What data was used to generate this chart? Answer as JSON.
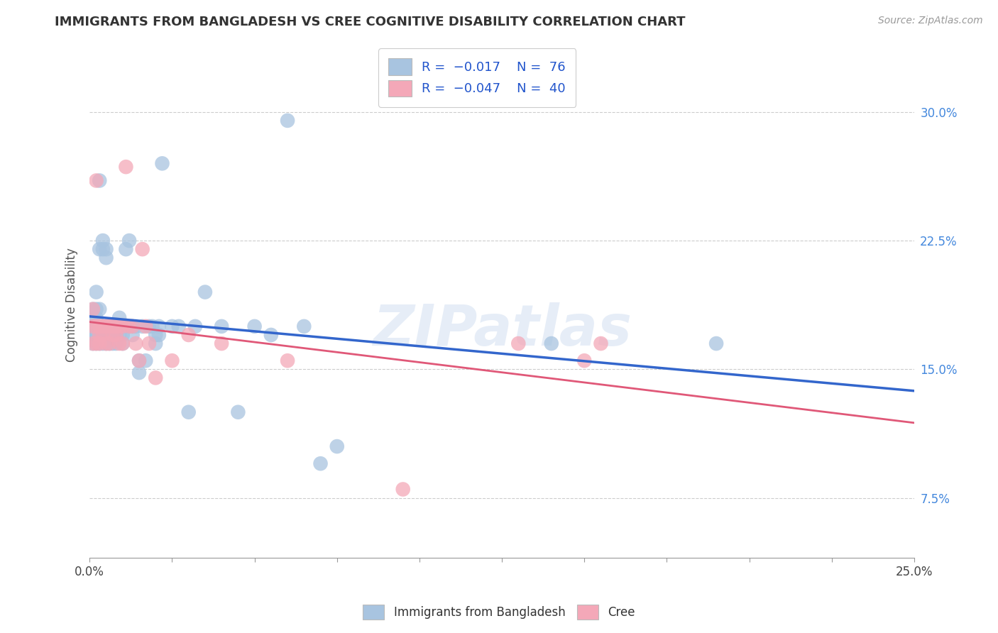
{
  "title": "IMMIGRANTS FROM BANGLADESH VS CREE COGNITIVE DISABILITY CORRELATION CHART",
  "source": "Source: ZipAtlas.com",
  "ylabel": "Cognitive Disability",
  "ytick_vals": [
    0.075,
    0.15,
    0.225,
    0.3
  ],
  "ytick_labels": [
    "7.5%",
    "15.0%",
    "22.5%",
    "30.0%"
  ],
  "xlim": [
    0.0,
    0.25
  ],
  "ylim": [
    0.04,
    0.335
  ],
  "blue_color": "#a8c4e0",
  "pink_color": "#f4a8b8",
  "blue_line_color": "#3366cc",
  "pink_line_color": "#e05878",
  "watermark": "ZIPatlas",
  "blue_scatter": [
    [
      0.001,
      0.175
    ],
    [
      0.001,
      0.18
    ],
    [
      0.001,
      0.185
    ],
    [
      0.001,
      0.17
    ],
    [
      0.001,
      0.165
    ],
    [
      0.002,
      0.175
    ],
    [
      0.002,
      0.185
    ],
    [
      0.002,
      0.18
    ],
    [
      0.002,
      0.17
    ],
    [
      0.002,
      0.195
    ],
    [
      0.002,
      0.165
    ],
    [
      0.002,
      0.17
    ],
    [
      0.003,
      0.26
    ],
    [
      0.003,
      0.22
    ],
    [
      0.003,
      0.185
    ],
    [
      0.003,
      0.175
    ],
    [
      0.003,
      0.17
    ],
    [
      0.003,
      0.165
    ],
    [
      0.004,
      0.225
    ],
    [
      0.004,
      0.22
    ],
    [
      0.004,
      0.175
    ],
    [
      0.004,
      0.17
    ],
    [
      0.004,
      0.165
    ],
    [
      0.005,
      0.22
    ],
    [
      0.005,
      0.215
    ],
    [
      0.005,
      0.175
    ],
    [
      0.005,
      0.17
    ],
    [
      0.005,
      0.165
    ],
    [
      0.006,
      0.175
    ],
    [
      0.006,
      0.17
    ],
    [
      0.006,
      0.165
    ],
    [
      0.007,
      0.175
    ],
    [
      0.007,
      0.17
    ],
    [
      0.007,
      0.165
    ],
    [
      0.008,
      0.175
    ],
    [
      0.008,
      0.17
    ],
    [
      0.008,
      0.165
    ],
    [
      0.009,
      0.18
    ],
    [
      0.009,
      0.175
    ],
    [
      0.009,
      0.17
    ],
    [
      0.01,
      0.175
    ],
    [
      0.01,
      0.17
    ],
    [
      0.01,
      0.165
    ],
    [
      0.011,
      0.22
    ],
    [
      0.011,
      0.175
    ],
    [
      0.012,
      0.225
    ],
    [
      0.012,
      0.175
    ],
    [
      0.013,
      0.175
    ],
    [
      0.013,
      0.17
    ],
    [
      0.014,
      0.175
    ],
    [
      0.015,
      0.155
    ],
    [
      0.015,
      0.148
    ],
    [
      0.016,
      0.175
    ],
    [
      0.017,
      0.155
    ],
    [
      0.018,
      0.175
    ],
    [
      0.019,
      0.175
    ],
    [
      0.02,
      0.17
    ],
    [
      0.02,
      0.165
    ],
    [
      0.021,
      0.175
    ],
    [
      0.021,
      0.17
    ],
    [
      0.022,
      0.27
    ],
    [
      0.025,
      0.175
    ],
    [
      0.027,
      0.175
    ],
    [
      0.03,
      0.125
    ],
    [
      0.032,
      0.175
    ],
    [
      0.035,
      0.195
    ],
    [
      0.04,
      0.175
    ],
    [
      0.045,
      0.125
    ],
    [
      0.05,
      0.175
    ],
    [
      0.055,
      0.17
    ],
    [
      0.06,
      0.295
    ],
    [
      0.065,
      0.175
    ],
    [
      0.07,
      0.095
    ],
    [
      0.075,
      0.105
    ],
    [
      0.14,
      0.165
    ],
    [
      0.19,
      0.165
    ]
  ],
  "pink_scatter": [
    [
      0.001,
      0.165
    ],
    [
      0.001,
      0.175
    ],
    [
      0.001,
      0.185
    ],
    [
      0.002,
      0.26
    ],
    [
      0.002,
      0.175
    ],
    [
      0.002,
      0.165
    ],
    [
      0.003,
      0.175
    ],
    [
      0.003,
      0.17
    ],
    [
      0.003,
      0.165
    ],
    [
      0.004,
      0.175
    ],
    [
      0.004,
      0.17
    ],
    [
      0.005,
      0.175
    ],
    [
      0.005,
      0.165
    ],
    [
      0.006,
      0.175
    ],
    [
      0.006,
      0.165
    ],
    [
      0.007,
      0.175
    ],
    [
      0.007,
      0.17
    ],
    [
      0.008,
      0.175
    ],
    [
      0.008,
      0.17
    ],
    [
      0.009,
      0.175
    ],
    [
      0.009,
      0.165
    ],
    [
      0.01,
      0.175
    ],
    [
      0.01,
      0.165
    ],
    [
      0.011,
      0.268
    ],
    [
      0.012,
      0.175
    ],
    [
      0.013,
      0.175
    ],
    [
      0.014,
      0.165
    ],
    [
      0.015,
      0.155
    ],
    [
      0.016,
      0.22
    ],
    [
      0.017,
      0.175
    ],
    [
      0.018,
      0.165
    ],
    [
      0.02,
      0.145
    ],
    [
      0.025,
      0.155
    ],
    [
      0.03,
      0.17
    ],
    [
      0.04,
      0.165
    ],
    [
      0.06,
      0.155
    ],
    [
      0.095,
      0.08
    ],
    [
      0.13,
      0.165
    ],
    [
      0.15,
      0.155
    ],
    [
      0.155,
      0.165
    ]
  ]
}
